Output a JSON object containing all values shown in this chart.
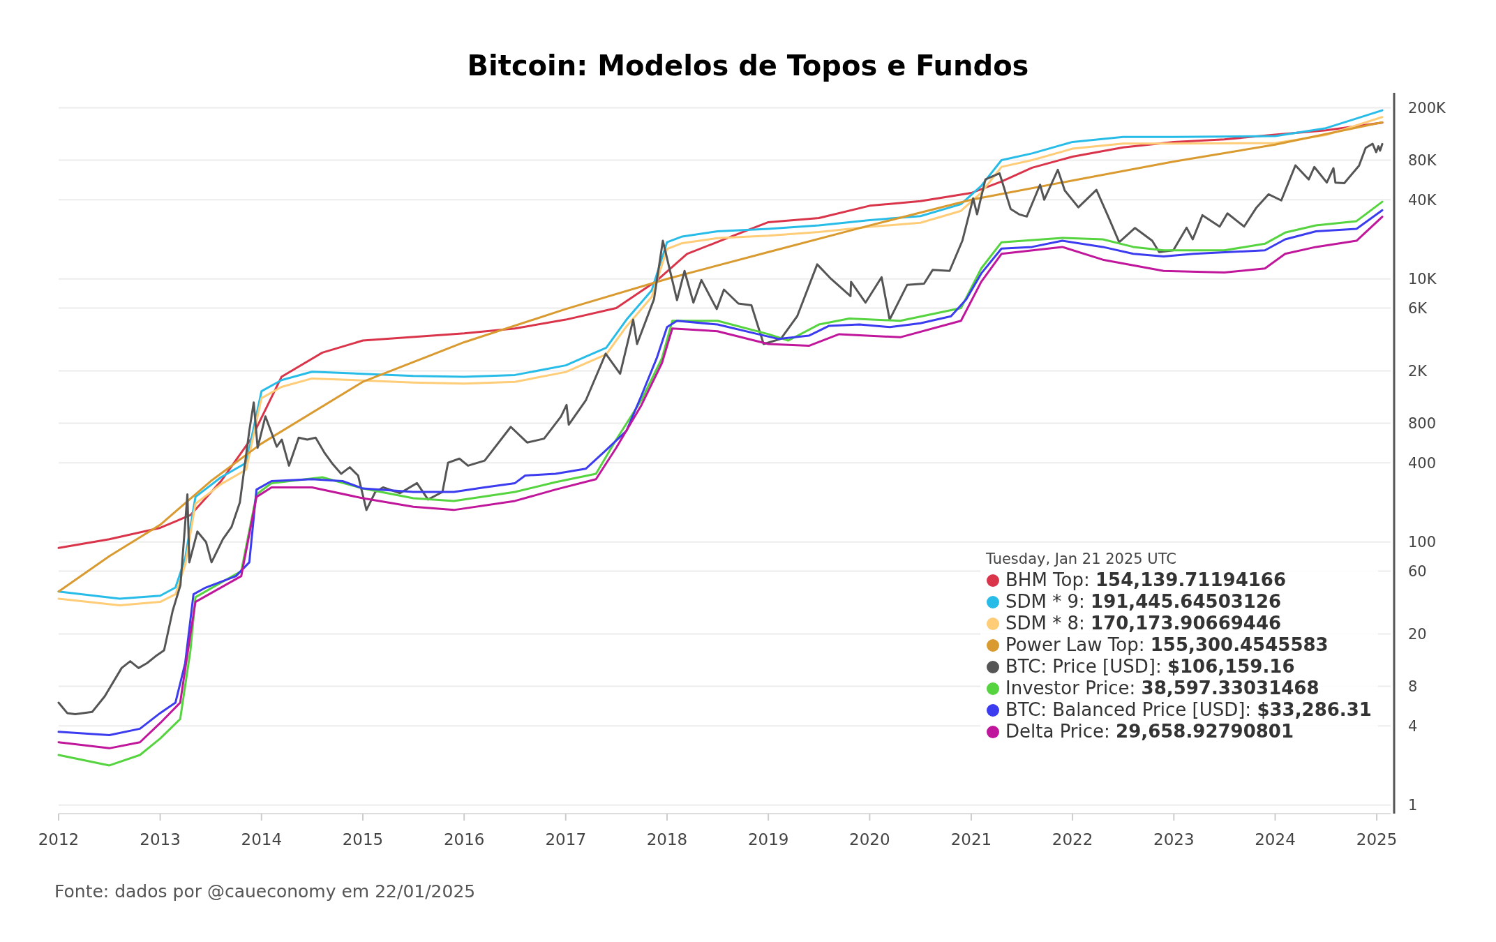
{
  "chart_data": {
    "type": "line",
    "title": "Bitcoin: Modelos de Topos e Fundos",
    "annotations": [
      "Fonte: dados por @caueconomy em 22/01/2025"
    ],
    "legend_title": "Tuesday, Jan 21 2025 UTC",
    "legend": "bottom right",
    "grid": "y",
    "log": "y",
    "xlim": [
      "2012-01-01",
      "2025-02-20"
    ],
    "xticks": [
      "2012",
      "2013",
      "2014",
      "2015",
      "2016",
      "2017",
      "2018",
      "2019",
      "2020",
      "2021",
      "2022",
      "2023",
      "2024",
      "2025"
    ],
    "ylim": [
      0.86,
      260000
    ],
    "yticks": [
      1,
      4,
      8,
      20,
      60,
      100,
      400,
      800,
      {
        "value": 2000,
        "label": "2K"
      },
      {
        "value": 6000,
        "label": "6K"
      },
      {
        "value": 10000,
        "label": "10K"
      },
      {
        "value": 40000,
        "label": "40K"
      },
      {
        "value": 80000,
        "label": "80K"
      },
      {
        "value": 200000,
        "label": "200K"
      }
    ],
    "series": [
      {
        "name": "BHM Top: 154,139.71194166",
        "color": "#d9344a",
        "x": [
          "2012-01-01",
          "2012-07-02",
          "2013-01-01",
          "2013-04-20",
          "2013-08-08",
          "2013-11-25",
          "2014-03-14",
          "2014-08-08",
          "2015-01-01",
          "2016-01-01",
          "2016-07-02",
          "2017-01-01",
          "2017-07-02",
          "2017-11-25",
          "2018-03-14",
          "2018-08-08",
          "2019-01-01",
          "2019-07-02",
          "2020-01-01",
          "2020-07-02",
          "2021-01-01",
          "2021-04-20",
          "2021-08-08",
          "2022-01-01",
          "2022-07-02",
          "2023-01-01",
          "2023-07-02",
          "2024-01-01",
          "2024-07-02",
          "2025-01-21"
        ],
        "values": [
          90,
          105,
          128,
          160,
          290,
          610,
          1800,
          2750,
          3400,
          3850,
          4200,
          4900,
          6000,
          9700,
          15500,
          20500,
          27000,
          29000,
          36000,
          39000,
          45000,
          55000,
          70000,
          85000,
          100000,
          110000,
          115000,
          125000,
          135000,
          154139.71
        ]
      },
      {
        "name": "SDM * 9: 191,445.64503126",
        "color": "#27bce8",
        "x": [
          "2012-01-01",
          "2012-08-08",
          "2013-01-01",
          "2013-02-25",
          "2013-04-01",
          "2013-05-08",
          "2013-08-08",
          "2013-11-07",
          "2013-12-14",
          "2014-01-01",
          "2014-03-14",
          "2014-07-02",
          "2015-01-01",
          "2015-07-02",
          "2016-01-01",
          "2016-07-02",
          "2017-01-01",
          "2017-05-27",
          "2017-08-08",
          "2017-11-07",
          "2018-01-01",
          "2018-02-25",
          "2018-07-02",
          "2019-01-01",
          "2019-07-02",
          "2020-01-01",
          "2020-07-02",
          "2020-11-25",
          "2021-02-06",
          "2021-04-20",
          "2021-08-08",
          "2022-01-01",
          "2022-07-02",
          "2023-01-01",
          "2024-01-01",
          "2024-07-02",
          "2025-01-21"
        ],
        "values": [
          42,
          37,
          39,
          45,
          75,
          220,
          310,
          400,
          930,
          1400,
          1700,
          1970,
          1900,
          1830,
          1800,
          1860,
          2200,
          3000,
          4900,
          8200,
          19000,
          21000,
          23000,
          24000,
          25500,
          28000,
          30000,
          37000,
          51000,
          80000,
          90000,
          110000,
          120000,
          120000,
          122000,
          140000,
          191445.65
        ]
      },
      {
        "name": "SDM * 8: 170,173.90669446",
        "color": "#ffcc77",
        "x": [
          "2012-01-01",
          "2012-08-08",
          "2013-01-01",
          "2013-02-25",
          "2013-04-01",
          "2013-05-08",
          "2013-08-08",
          "2013-11-07",
          "2013-12-14",
          "2014-01-01",
          "2014-03-14",
          "2014-07-02",
          "2015-01-01",
          "2015-07-02",
          "2016-01-01",
          "2016-07-02",
          "2017-01-01",
          "2017-05-27",
          "2017-08-08",
          "2017-11-07",
          "2018-01-01",
          "2018-02-25",
          "2018-07-02",
          "2019-01-01",
          "2019-07-02",
          "2020-01-01",
          "2020-07-02",
          "2020-11-25",
          "2021-02-06",
          "2021-04-20",
          "2021-08-08",
          "2022-01-01",
          "2022-07-02",
          "2023-01-01",
          "2024-01-01",
          "2024-07-02",
          "2025-01-21"
        ],
        "values": [
          37,
          33,
          35,
          40,
          67,
          195,
          275,
          355,
          830,
          1240,
          1510,
          1750,
          1690,
          1630,
          1600,
          1650,
          1960,
          2670,
          4360,
          7300,
          16900,
          18700,
          20400,
          21300,
          22700,
          24900,
          26700,
          32900,
          45300,
          71100,
          80000,
          97800,
          107000,
          107000,
          108000,
          124000,
          170173.91
        ]
      },
      {
        "name": "Power Law Top: 155,300.4545583",
        "color": "#d99a30",
        "x": [
          "2012-01-01",
          "2012-07-02",
          "2013-01-01",
          "2013-07-02",
          "2014-01-01",
          "2015-01-01",
          "2016-01-01",
          "2017-01-01",
          "2018-01-01",
          "2019-01-01",
          "2020-01-01",
          "2021-01-01",
          "2022-01-01",
          "2023-01-01",
          "2024-01-01",
          "2025-01-21"
        ],
        "values": [
          42,
          78,
          135,
          290,
          560,
          1650,
          3300,
          5900,
          10000,
          16000,
          25500,
          40000,
          56000,
          78000,
          105000,
          155300.45
        ]
      },
      {
        "name": "BTC: Price [USD]: $106,159.16",
        "color": "#555555",
        "x": [
          "2012-01-01",
          "2012-02-01",
          "2012-03-01",
          "2012-05-01",
          "2012-06-15",
          "2012-08-15",
          "2012-09-15",
          "2012-10-15",
          "2012-11-15",
          "2012-12-15",
          "2013-01-15",
          "2013-02-15",
          "2013-03-15",
          "2013-04-09",
          "2013-04-16",
          "2013-05-15",
          "2013-06-15",
          "2013-07-05",
          "2013-08-15",
          "2013-09-15",
          "2013-10-15",
          "2013-11-18",
          "2013-12-04",
          "2013-12-18",
          "2014-01-15",
          "2014-02-25",
          "2014-03-15",
          "2014-04-10",
          "2014-05-15",
          "2014-06-15",
          "2014-07-15",
          "2014-08-15",
          "2014-09-15",
          "2014-10-15",
          "2014-11-15",
          "2014-12-15",
          "2015-01-14",
          "2015-02-15",
          "2015-03-15",
          "2015-05-15",
          "2015-07-15",
          "2015-08-24",
          "2015-10-15",
          "2015-11-04",
          "2015-12-15",
          "2016-01-15",
          "2016-03-15",
          "2016-06-17",
          "2016-08-15",
          "2016-10-15",
          "2016-12-15",
          "2017-01-04",
          "2017-01-12",
          "2017-03-15",
          "2017-05-25",
          "2017-07-16",
          "2017-09-01",
          "2017-09-15",
          "2017-11-15",
          "2017-12-17",
          "2018-02-06",
          "2018-03-05",
          "2018-04-06",
          "2018-05-05",
          "2018-06-29",
          "2018-07-25",
          "2018-09-15",
          "2018-11-01",
          "2018-12-15",
          "2019-02-15",
          "2019-04-15",
          "2019-06-26",
          "2019-08-15",
          "2019-10-24",
          "2019-10-26",
          "2019-12-17",
          "2020-02-13",
          "2020-03-13",
          "2020-05-15",
          "2020-07-15",
          "2020-08-15",
          "2020-10-15",
          "2020-11-30",
          "2021-01-08",
          "2021-01-22",
          "2021-02-21",
          "2021-04-13",
          "2021-05-23",
          "2021-06-22",
          "2021-07-20",
          "2021-09-06",
          "2021-09-21",
          "2021-11-09",
          "2021-12-04",
          "2022-01-22",
          "2022-03-28",
          "2022-05-12",
          "2022-06-18",
          "2022-08-14",
          "2022-10-15",
          "2022-11-09",
          "2022-12-30",
          "2023-02-16",
          "2023-03-10",
          "2023-04-14",
          "2023-06-15",
          "2023-07-13",
          "2023-09-11",
          "2023-10-24",
          "2023-12-08",
          "2024-01-23",
          "2024-03-14",
          "2024-05-01",
          "2024-05-21",
          "2024-07-05",
          "2024-07-29",
          "2024-08-05",
          "2024-09-06",
          "2024-10-29",
          "2024-11-22",
          "2024-12-17",
          "2024-12-30",
          "2025-01-07",
          "2025-01-13",
          "2025-01-21"
        ],
        "values": [
          6,
          5,
          4.9,
          5.1,
          6.7,
          11,
          12.4,
          11,
          12,
          13.5,
          15,
          30,
          47,
          230,
          70,
          120,
          100,
          70,
          105,
          130,
          200,
          700,
          1150,
          520,
          900,
          530,
          600,
          380,
          620,
          600,
          620,
          480,
          390,
          330,
          370,
          320,
          175,
          240,
          260,
          235,
          280,
          210,
          240,
          400,
          430,
          380,
          415,
          750,
          570,
          610,
          900,
          1100,
          780,
          1200,
          2700,
          1900,
          4900,
          3200,
          7000,
          19500,
          6900,
          11500,
          6600,
          9800,
          5900,
          8300,
          6500,
          6300,
          3200,
          3500,
          5200,
          12900,
          10000,
          7400,
          9500,
          6600,
          10300,
          4900,
          9000,
          9200,
          11700,
          11500,
          19500,
          41000,
          31000,
          57000,
          63500,
          34000,
          31000,
          29800,
          52000,
          40000,
          67500,
          47000,
          35000,
          47500,
          29000,
          19000,
          24400,
          19500,
          16000,
          16500,
          24500,
          20000,
          30500,
          25000,
          31500,
          25000,
          34500,
          44000,
          39500,
          73000,
          57000,
          71000,
          54000,
          69500,
          54000,
          53500,
          72500,
          99000,
          106500,
          92000,
          102000,
          94500,
          106159.16
        ]
      },
      {
        "name": "Investor Price: 38,597.33031468",
        "color": "#55d43f",
        "x": [
          "2012-01-01",
          "2012-07-02",
          "2012-10-20",
          "2013-01-01",
          "2013-03-14",
          "2013-04-20",
          "2013-05-08",
          "2013-10-20",
          "2013-12-14",
          "2014-02-06",
          "2014-08-08",
          "2015-01-01",
          "2015-07-02",
          "2015-11-25",
          "2016-07-02",
          "2016-11-25",
          "2017-04-20",
          "2017-07-02",
          "2017-10-01",
          "2017-12-14",
          "2018-01-20",
          "2018-07-02",
          "2019-01-01",
          "2019-03-14",
          "2019-07-02",
          "2019-10-20",
          "2020-04-20",
          "2020-11-25",
          "2021-02-06",
          "2021-04-20",
          "2021-11-25",
          "2022-04-20",
          "2022-08-08",
          "2022-11-25",
          "2023-07-02",
          "2023-11-25",
          "2024-02-06",
          "2024-05-27",
          "2024-10-20",
          "2025-01-21"
        ],
        "values": [
          2.4,
          2,
          2.4,
          3.2,
          4.5,
          15,
          38,
          60,
          230,
          280,
          310,
          255,
          215,
          205,
          240,
          285,
          330,
          600,
          1200,
          2500,
          4800,
          4800,
          3800,
          3400,
          4500,
          5000,
          4800,
          6000,
          12000,
          19000,
          20500,
          20000,
          17500,
          16500,
          16500,
          18500,
          22500,
          25500,
          27500,
          38597.33
        ]
      },
      {
        "name": "BTC: Balanced Price [USD]: $33,286.31",
        "color": "#3b3bf0",
        "x": [
          "2012-01-01",
          "2012-07-02",
          "2012-10-20",
          "2013-01-01",
          "2013-02-25",
          "2013-04-01",
          "2013-05-01",
          "2013-06-14",
          "2013-10-01",
          "2013-11-18",
          "2013-12-14",
          "2014-02-06",
          "2014-07-02",
          "2014-10-20",
          "2015-01-01",
          "2015-07-02",
          "2015-11-25",
          "2016-03-14",
          "2016-07-02",
          "2016-08-08",
          "2016-11-25",
          "2017-03-14",
          "2017-05-27",
          "2017-08-08",
          "2017-10-01",
          "2017-11-25",
          "2018-01-01",
          "2018-02-06",
          "2018-07-02",
          "2018-11-25",
          "2019-02-06",
          "2019-05-27",
          "2019-08-08",
          "2019-11-25",
          "2020-03-14",
          "2020-07-02",
          "2020-10-20",
          "2020-12-14",
          "2021-02-06",
          "2021-04-20",
          "2021-08-08",
          "2021-11-25",
          "2022-04-20",
          "2022-08-08",
          "2022-11-25",
          "2023-03-14",
          "2023-11-25",
          "2024-02-06",
          "2024-05-27",
          "2024-10-20",
          "2025-01-21"
        ],
        "values": [
          3.6,
          3.4,
          3.8,
          5,
          6,
          12,
          40,
          45,
          55,
          70,
          250,
          290,
          300,
          290,
          255,
          240,
          240,
          260,
          280,
          320,
          330,
          360,
          500,
          700,
          1300,
          2500,
          4300,
          4800,
          4500,
          3800,
          3500,
          3700,
          4400,
          4500,
          4300,
          4600,
          5200,
          7000,
          11000,
          17000,
          17500,
          19500,
          17500,
          15500,
          14800,
          15500,
          16500,
          20000,
          23000,
          24000,
          33286.31
        ]
      },
      {
        "name": "Delta Price: 29,658.92790801",
        "color": "#c0169b",
        "x": [
          "2012-01-01",
          "2012-07-02",
          "2012-10-20",
          "2013-01-01",
          "2013-03-14",
          "2013-04-20",
          "2013-05-08",
          "2013-10-20",
          "2013-12-14",
          "2014-02-06",
          "2014-07-02",
          "2015-01-01",
          "2015-07-02",
          "2015-11-25",
          "2016-07-02",
          "2016-11-25",
          "2017-04-20",
          "2017-07-02",
          "2017-10-01",
          "2017-12-14",
          "2018-01-20",
          "2018-07-02",
          "2019-01-01",
          "2019-05-27",
          "2019-09-13",
          "2020-04-20",
          "2020-11-25",
          "2021-02-06",
          "2021-04-20",
          "2021-11-25",
          "2022-04-20",
          "2022-11-25",
          "2023-07-02",
          "2023-11-25",
          "2024-02-06",
          "2024-05-27",
          "2024-10-20",
          "2025-01-21"
        ],
        "values": [
          3,
          2.7,
          3,
          4.2,
          6,
          20,
          35,
          55,
          220,
          260,
          260,
          215,
          185,
          175,
          205,
          250,
          300,
          520,
          1100,
          2300,
          4200,
          4000,
          3200,
          3100,
          3800,
          3600,
          4800,
          9500,
          15500,
          17500,
          14000,
          11500,
          11200,
          12000,
          15500,
          17500,
          19500,
          29658.93
        ]
      }
    ]
  }
}
